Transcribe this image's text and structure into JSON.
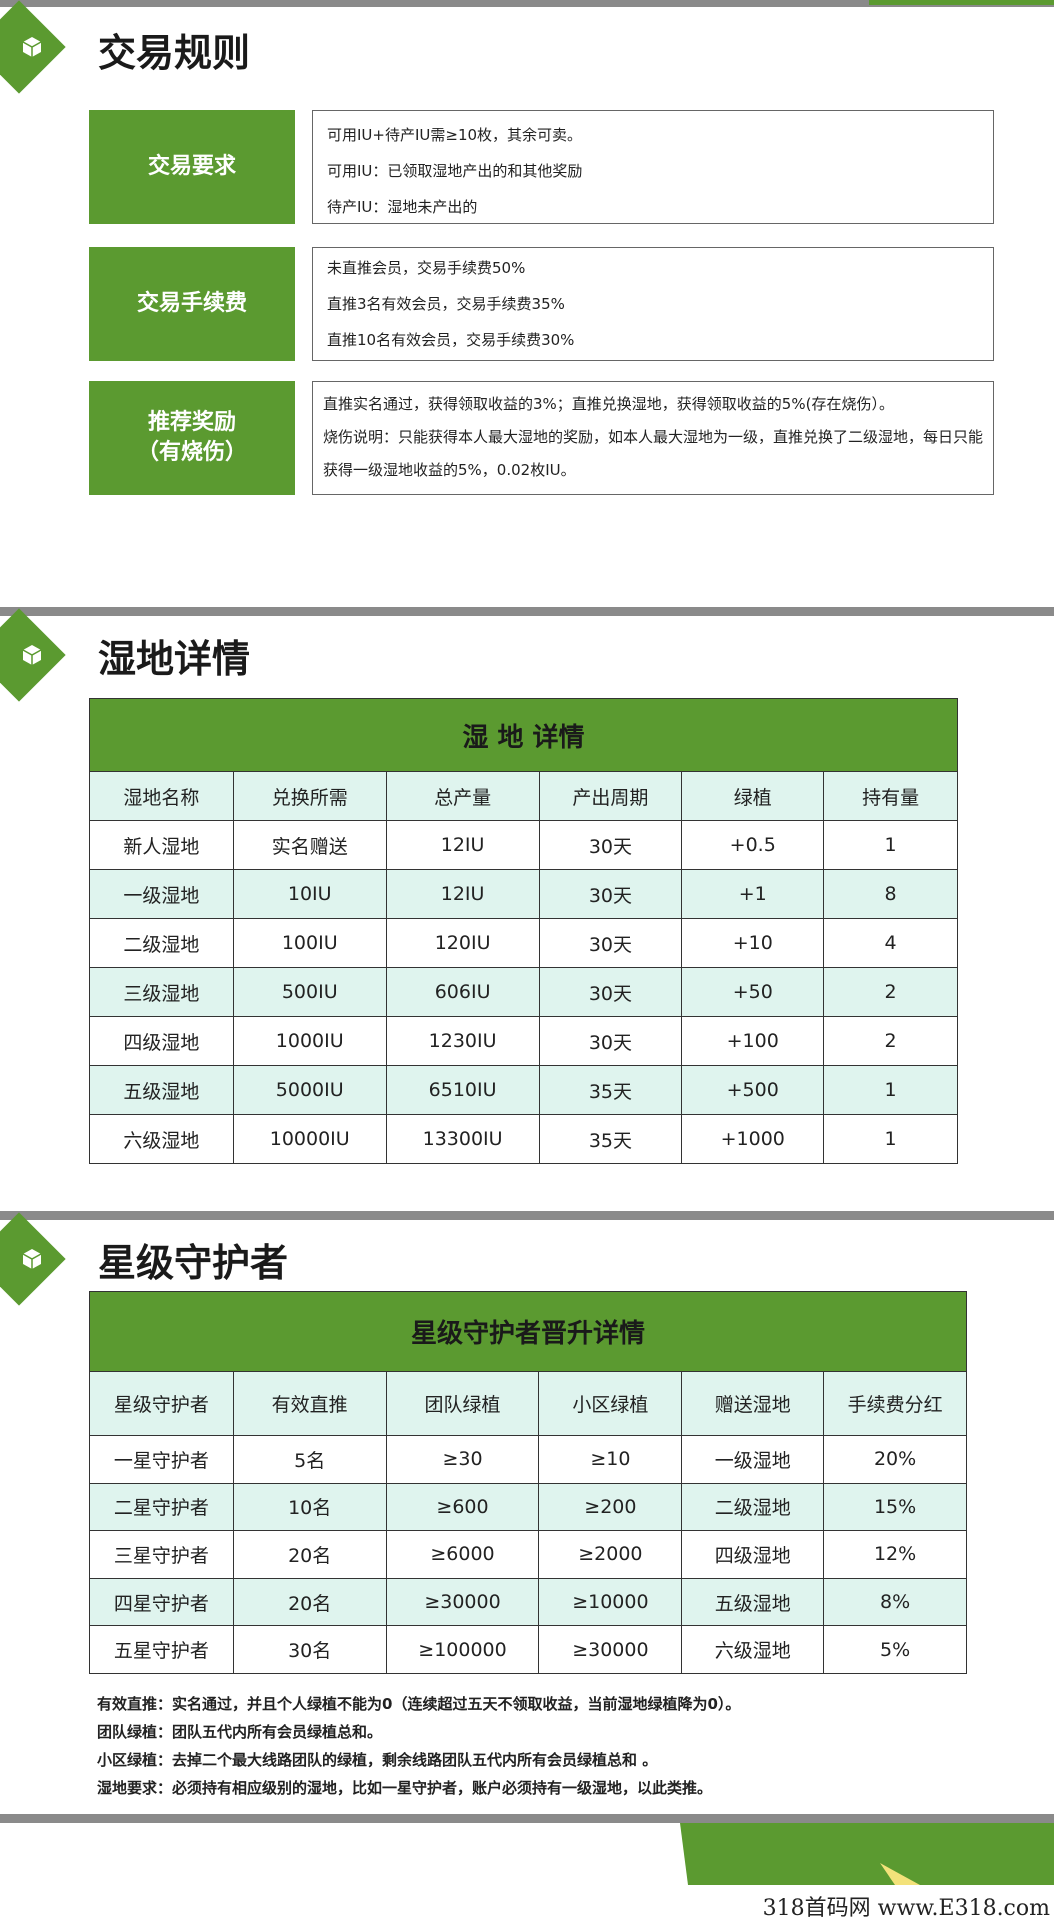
{
  "colors": {
    "accent": "#5b9a30",
    "mint": "#dff4ee",
    "bar": "#8a8a8a"
  },
  "icons": {
    "section": "cube-icon"
  },
  "trade": {
    "heading": "交易规则",
    "rows": [
      {
        "label": "交易要求",
        "lines": [
          "可用IU+待产IU需≥10枚，其余可卖。",
          "可用IU：已领取湿地产出的和其他奖励",
          "待产IU：湿地未产出的"
        ]
      },
      {
        "label": "交易手续费",
        "lines": [
          "未直推会员，交易手续费50%",
          "直推3名有效会员，交易手续费35%",
          "直推10名有效会员，交易手续费30%"
        ]
      },
      {
        "label": "推荐奖励",
        "label2": "（有烧伤）",
        "lines": [
          "直推实名通过，获得领取收益的3%；直推兑换湿地，获得领取收益的5%(存在烧伤）。",
          "烧伤说明：只能获得本人最大湿地的奖励，如本人最大湿地为一级，直推兑换了二级湿地，每日只能获得一级湿地收益的5%，0.02枚IU。"
        ]
      }
    ]
  },
  "wetland": {
    "heading": "湿地详情",
    "table_title": "湿 地 详情",
    "columns": [
      "湿地名称",
      "兑换所需",
      "总产量",
      "产出周期",
      "绿植",
      "持有量"
    ],
    "rows": [
      [
        "新人湿地",
        "实名赠送",
        "12IU",
        "30天",
        "+0.5",
        "1"
      ],
      [
        "一级湿地",
        "10IU",
        "12IU",
        "30天",
        "+1",
        "8"
      ],
      [
        "二级湿地",
        "100IU",
        "120IU",
        "30天",
        "+10",
        "4"
      ],
      [
        "三级湿地",
        "500IU",
        "606IU",
        "30天",
        "+50",
        "2"
      ],
      [
        "四级湿地",
        "1000IU",
        "1230IU",
        "30天",
        "+100",
        "2"
      ],
      [
        "五级湿地",
        "5000IU",
        "6510IU",
        "35天",
        "+500",
        "1"
      ],
      [
        "六级湿地",
        "10000IU",
        "13300IU",
        "35天",
        "+1000",
        "1"
      ]
    ]
  },
  "guardian": {
    "heading": "星级守护者",
    "table_title": "星级守护者晋升详情",
    "columns": [
      "星级守护者",
      "有效直推",
      "团队绿植",
      "小区绿植",
      "赠送湿地",
      "手续费分红"
    ],
    "rows": [
      [
        "一星守护者",
        "5名",
        "≥30",
        "≥10",
        "一级湿地",
        "20%"
      ],
      [
        "二星守护者",
        "10名",
        "≥600",
        "≥200",
        "二级湿地",
        "15%"
      ],
      [
        "三星守护者",
        "20名",
        "≥6000",
        "≥2000",
        "四级湿地",
        "12%"
      ],
      [
        "四星守护者",
        "20名",
        "≥30000",
        "≥10000",
        "五级湿地",
        "8%"
      ],
      [
        "五星守护者",
        "30名",
        "≥100000",
        "≥30000",
        "六级湿地",
        "5%"
      ]
    ],
    "notes": [
      "有效直推：实名通过，并且个人绿植不能为0（连续超过五天不领取收益，当前湿地绿植降为0）。",
      "团队绿植：团队五代内所有会员绿植总和。",
      "小区绿植：去掉二个最大线路团队的绿植，剩余线路团队五代内所有会员绿植总和 。",
      "湿地要求：必须持有相应级别的湿地，比如一星守护者，账户必须持有一级湿地，以此类推。"
    ]
  },
  "watermark": "318首码网 www.E318.com"
}
